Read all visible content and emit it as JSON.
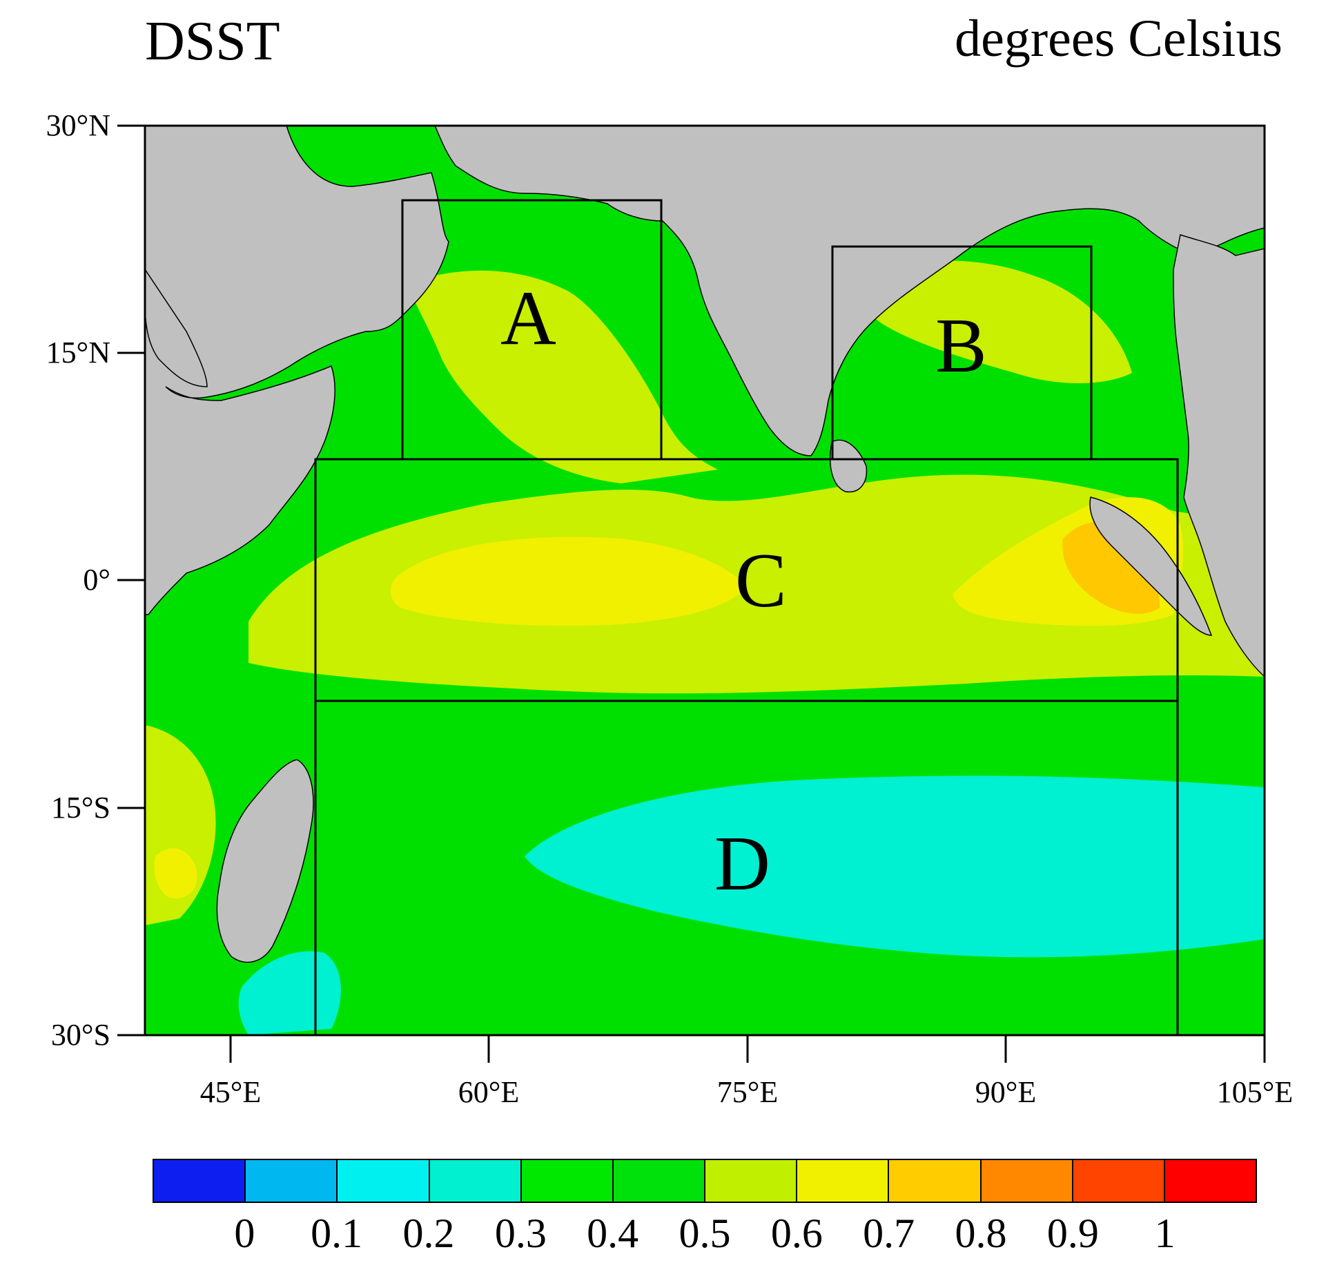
{
  "title": "DSST",
  "units": "degrees Celsius",
  "axes": {
    "y_labels": [
      "30°N",
      "15°N",
      "0°",
      "15°S",
      "30°S"
    ],
    "x_labels": [
      "45°E",
      "60°E",
      "75°E",
      "90°E",
      "105°E"
    ],
    "lon_range": [
      40,
      105
    ],
    "lat_range": [
      -30,
      30
    ]
  },
  "regions": [
    {
      "id": "A",
      "label": "A"
    },
    {
      "id": "B",
      "label": "B"
    },
    {
      "id": "C",
      "label": "C"
    },
    {
      "id": "D",
      "label": "D"
    }
  ],
  "colorbar": {
    "labels": [
      "0",
      "0.1",
      "0.2",
      "0.3",
      "0.4",
      "0.5",
      "0.6",
      "0.7",
      "0.8",
      "0.9",
      "1"
    ],
    "colors": [
      "#0d1ff0",
      "#00b7f0",
      "#00f0f0",
      "#00f0d0",
      "#00e800",
      "#00e00a",
      "#c0f000",
      "#f0f000",
      "#ffcc00",
      "#ff8800",
      "#ff4400",
      "#ff0000"
    ]
  },
  "colors": {
    "land": "#c0c0c0",
    "ocean_base": "#00e000",
    "warm": "#c8f000",
    "warmer": "#f0f000",
    "hot": "#ffc800",
    "cool": "#00f0d2"
  }
}
